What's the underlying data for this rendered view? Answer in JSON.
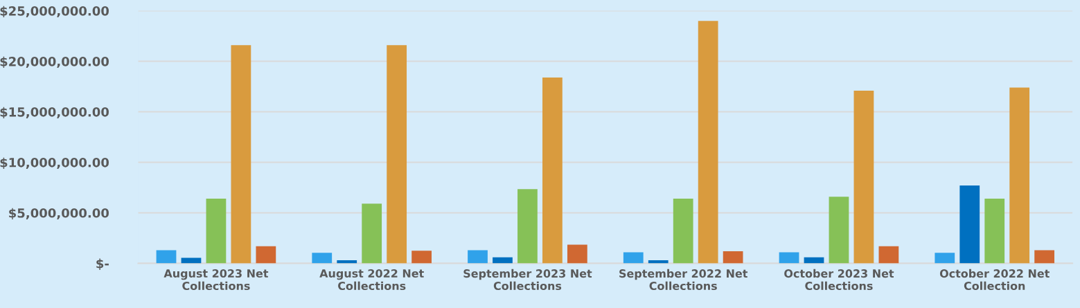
{
  "chart_data": {
    "type": "bar",
    "categories": [
      "August 2023 Net\nCollections",
      "August 2022 Net\nCollections",
      "September 2023 Net\nCollections",
      "September 2022 Net\nCollections",
      "October 2023 Net\nCollections",
      "October 2022 Net\nCollection"
    ],
    "series": [
      {
        "color": "#30a2ea",
        "values": [
          1300000,
          1050000,
          1300000,
          1100000,
          1100000,
          1050000
        ]
      },
      {
        "color": "#0070c0",
        "values": [
          550000,
          300000,
          600000,
          300000,
          600000,
          7700000
        ]
      },
      {
        "color": "#86c157",
        "values": [
          6400000,
          5900000,
          7350000,
          6400000,
          6600000,
          6400000
        ]
      },
      {
        "color": "#d99b3e",
        "values": [
          21600000,
          21600000,
          18400000,
          24000000,
          17100000,
          17400000
        ]
      },
      {
        "color": "#d06832",
        "values": [
          1700000,
          1250000,
          1850000,
          1200000,
          1700000,
          1300000
        ]
      }
    ],
    "ylim": [
      0,
      25000000
    ],
    "yticks": [
      {
        "value": 0,
        "label": "$-"
      },
      {
        "value": 5000000,
        "label": "$5,000,000.00"
      },
      {
        "value": 10000000,
        "label": "$10,000,000.00"
      },
      {
        "value": 15000000,
        "label": "$15,000,000.00"
      },
      {
        "value": 20000000,
        "label": "$20,000,000.00"
      },
      {
        "value": 25000000,
        "label": "$25,000,000.00"
      }
    ],
    "grid": "y",
    "legend": false
  }
}
